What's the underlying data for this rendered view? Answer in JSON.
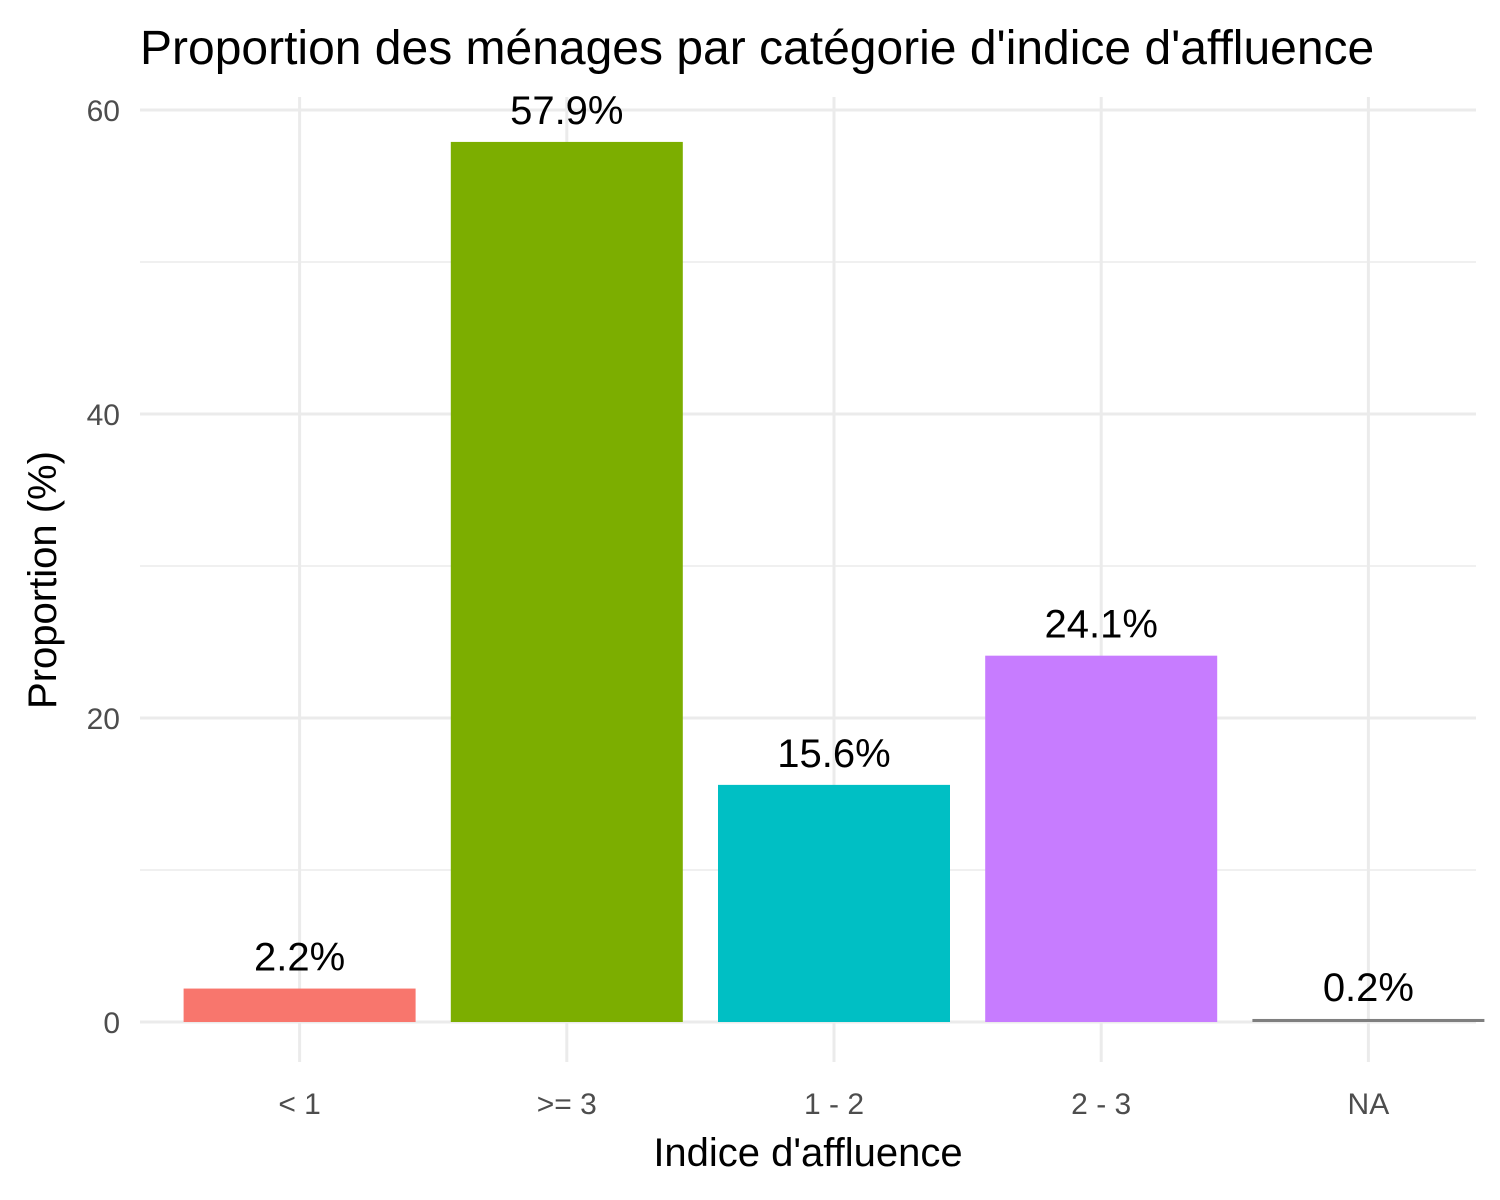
{
  "chart_data": {
    "type": "bar",
    "title": "Proportion des ménages par catégorie d'indice d'affluence",
    "xlabel": "Indice d'affluence",
    "ylabel": "Proportion (%)",
    "categories": [
      "< 1",
      ">= 3",
      "1 - 2",
      "2 - 3",
      "NA"
    ],
    "values": [
      2.2,
      57.9,
      15.6,
      24.1,
      0.2
    ],
    "value_labels": [
      "2.2%",
      "57.9%",
      "15.6%",
      "24.1%",
      "0.2%"
    ],
    "colors": [
      "#F8766D",
      "#7CAE00",
      "#00BFC4",
      "#C77CFF",
      "#7F7F7F"
    ],
    "ylim": [
      0,
      62
    ],
    "yticks": [
      0,
      20,
      40,
      60
    ],
    "ytick_labels": [
      "0",
      "20",
      "40",
      "60"
    ],
    "grid": true,
    "legend": "none"
  }
}
